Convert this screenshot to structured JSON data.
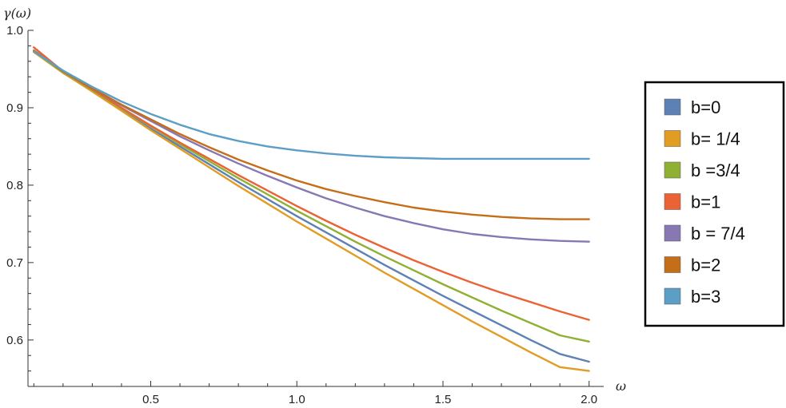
{
  "chart_data": {
    "type": "line",
    "xlabel": "ω",
    "ylabel": "γ(ω)",
    "xlim": [
      0.08,
      2.05
    ],
    "ylim": [
      0.54,
      1.0
    ],
    "x_ticks": [
      0.5,
      1.0,
      1.5,
      2.0
    ],
    "x_tick_labels": [
      "0.5",
      "1.0",
      "1.5",
      "2.0"
    ],
    "y_ticks": [
      0.6,
      0.7,
      0.8,
      0.9,
      1.0
    ],
    "y_tick_labels": [
      "0.6",
      "0.7",
      "0.8",
      "0.9",
      "1.0"
    ],
    "grid": false,
    "legend_position": "right",
    "x": [
      0.1,
      0.2,
      0.3,
      0.4,
      0.5,
      0.6,
      0.7,
      0.8,
      0.9,
      1.0,
      1.1,
      1.2,
      1.3,
      1.4,
      1.5,
      1.6,
      1.7,
      1.8,
      1.9,
      2.0
    ],
    "series": [
      {
        "name": "b=0",
        "color": "#5e81b5",
        "values": [
          0.972,
          0.945,
          0.922,
          0.897,
          0.873,
          0.85,
          0.827,
          0.804,
          0.782,
          0.76,
          0.739,
          0.718,
          0.697,
          0.677,
          0.657,
          0.638,
          0.619,
          0.6,
          0.582,
          0.572
        ]
      },
      {
        "name": "b= 1/4",
        "color": "#e19c24",
        "values": [
          0.972,
          0.945,
          0.921,
          0.896,
          0.871,
          0.847,
          0.823,
          0.799,
          0.776,
          0.753,
          0.731,
          0.709,
          0.687,
          0.666,
          0.645,
          0.624,
          0.604,
          0.584,
          0.565,
          0.56
        ]
      },
      {
        "name": "b =3/4",
        "color": "#8fb032",
        "values": [
          0.973,
          0.946,
          0.923,
          0.899,
          0.876,
          0.853,
          0.831,
          0.809,
          0.788,
          0.767,
          0.747,
          0.727,
          0.708,
          0.69,
          0.672,
          0.655,
          0.638,
          0.622,
          0.606,
          0.598
        ]
      },
      {
        "name": "b=1",
        "color": "#eb6235",
        "values": [
          0.978,
          0.947,
          0.924,
          0.9,
          0.877,
          0.855,
          0.834,
          0.813,
          0.793,
          0.773,
          0.754,
          0.736,
          0.719,
          0.703,
          0.688,
          0.674,
          0.661,
          0.649,
          0.637,
          0.626
        ]
      },
      {
        "name": "b = 7/4",
        "color": "#8778b3",
        "values": [
          0.974,
          0.947,
          0.925,
          0.903,
          0.883,
          0.863,
          0.845,
          0.828,
          0.812,
          0.797,
          0.783,
          0.771,
          0.76,
          0.751,
          0.743,
          0.737,
          0.733,
          0.73,
          0.728,
          0.727
        ]
      },
      {
        "name": "b=2",
        "color": "#c56e1a",
        "values": [
          0.974,
          0.947,
          0.925,
          0.904,
          0.885,
          0.866,
          0.849,
          0.833,
          0.819,
          0.806,
          0.795,
          0.786,
          0.778,
          0.771,
          0.766,
          0.762,
          0.759,
          0.757,
          0.756,
          0.756
        ]
      },
      {
        "name": "b=3",
        "color": "#5d9ec7",
        "values": [
          0.973,
          0.948,
          0.927,
          0.908,
          0.892,
          0.878,
          0.866,
          0.857,
          0.85,
          0.845,
          0.841,
          0.838,
          0.836,
          0.835,
          0.834,
          0.834,
          0.834,
          0.834,
          0.834,
          0.834
        ]
      }
    ]
  }
}
